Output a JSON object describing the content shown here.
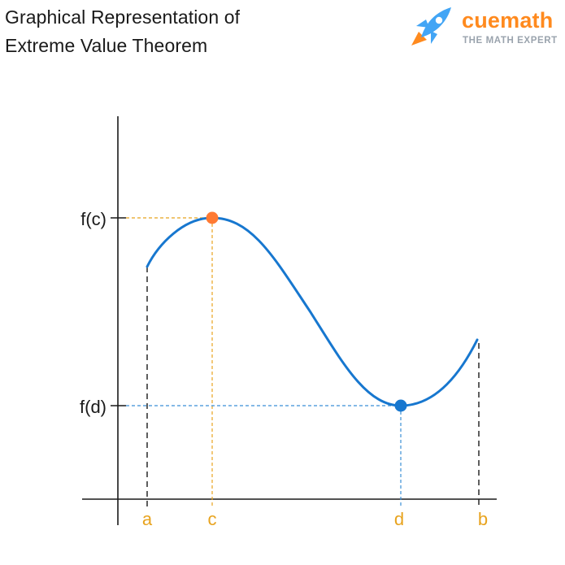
{
  "header": {
    "title_line1": "Graphical Representation of",
    "title_line2": "Extreme Value Theorem"
  },
  "logo": {
    "word": "cuemath",
    "tagline": "THE MATH EXPERT",
    "icon": "rocket-icon",
    "colors": {
      "primary": "#ff8a1e",
      "secondary": "#42a5f5",
      "tagline": "#9aa3ad"
    }
  },
  "diagram": {
    "y_labels": {
      "max_value": "f(c)",
      "min_value": "f(d)"
    },
    "x_labels": {
      "a": "a",
      "c": "c",
      "d": "d",
      "b": "b"
    },
    "colors": {
      "curve": "#1777cf",
      "max_point": "#ff7a33",
      "min_point": "#1777cf",
      "max_guide": "#e8a31e",
      "min_guide": "#3b8fd6",
      "x_labels": "#e8a31e",
      "axis": "#1a1a1a"
    }
  }
}
